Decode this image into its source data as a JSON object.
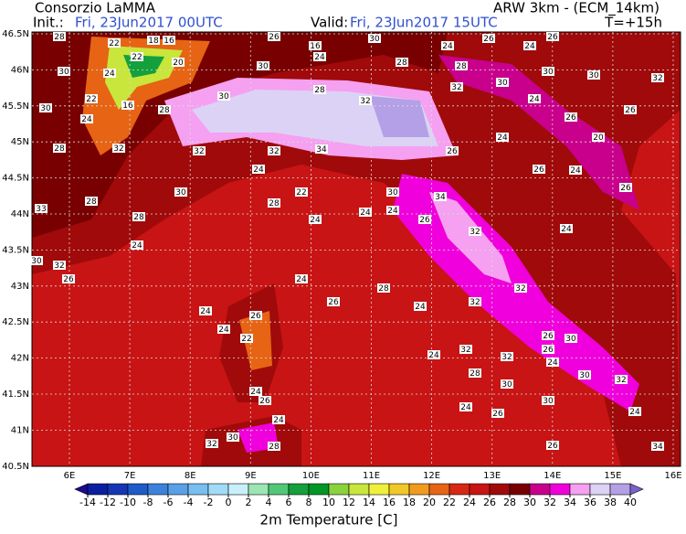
{
  "header": {
    "title": "Consorzio LaMMA",
    "init_label": "Init.:",
    "init_time": "Fri, 23Jun2017 00UTC",
    "model": "ARW 3km - (ECM_14km)",
    "valid_label": "Valid:",
    "valid_time": "Fri, 23Jun2017 15UTC",
    "lead": "T=+15h"
  },
  "map": {
    "lat_labels": [
      "46.5N",
      "46N",
      "45.5N",
      "45N",
      "44.5N",
      "44N",
      "43.5N",
      "43N",
      "42.5N",
      "42N",
      "41.5N",
      "41N",
      "40.5N"
    ],
    "lon_labels": [
      "6E",
      "7E",
      "8E",
      "9E",
      "10E",
      "11E",
      "12E",
      "13E",
      "14E",
      "15E",
      "16E"
    ],
    "station_values": [
      28,
      22,
      18,
      16,
      26,
      16,
      30,
      24,
      26,
      24,
      26,
      30,
      24,
      22,
      20,
      30,
      24,
      28,
      28,
      30,
      30,
      30,
      32,
      30,
      22,
      16,
      28,
      30,
      28,
      32,
      32,
      24,
      26,
      26,
      28,
      24,
      32,
      32,
      32,
      34,
      26,
      24,
      20,
      33,
      28,
      28,
      30,
      24,
      22,
      30,
      34,
      26,
      24,
      26,
      24,
      28,
      24,
      24,
      24,
      26,
      32,
      24,
      30,
      32,
      26,
      24,
      26,
      28,
      24,
      32,
      32,
      26,
      24,
      22,
      24,
      24,
      32,
      26,
      30,
      26,
      32,
      24,
      30,
      32,
      28,
      30,
      24,
      26,
      24,
      26,
      30,
      24,
      30,
      28,
      32,
      24,
      26,
      34
    ]
  },
  "colorbar": {
    "ticks": [
      -14,
      -12,
      -10,
      -8,
      -6,
      -4,
      -2,
      0,
      2,
      4,
      6,
      8,
      10,
      12,
      14,
      16,
      18,
      20,
      22,
      24,
      26,
      28,
      30,
      32,
      34,
      36,
      38,
      40
    ],
    "colors": [
      "#1a0a8c",
      "#0a1ea0",
      "#1436b4",
      "#1e5ac8",
      "#3c82dc",
      "#5aa0e6",
      "#78bef0",
      "#a0dcf8",
      "#c8f0fa",
      "#9be6b4",
      "#50c878",
      "#14a03c",
      "#009628",
      "#8cd23c",
      "#c8e63c",
      "#f0f03c",
      "#f0c828",
      "#f09b1e",
      "#e66414",
      "#d72814",
      "#c81414",
      "#a00a0a",
      "#780000",
      "#c8008c",
      "#f000dc",
      "#f5a0f0",
      "#dcd2f5",
      "#b4a0e6",
      "#7864c8"
    ],
    "label": "2m Temperature [C]"
  }
}
